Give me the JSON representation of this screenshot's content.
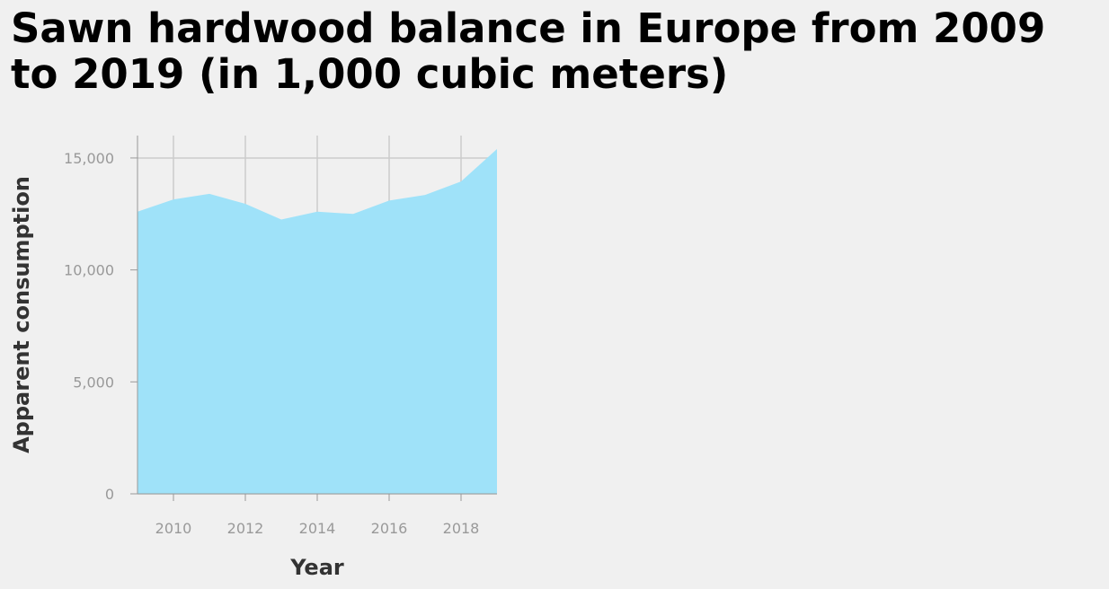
{
  "title": "Sawn hardwood balance in Europe from 2009 to 2019 (in 1,000 cubic meters)",
  "colors": {
    "background": "#f0f0f0",
    "area_fill": "#9fe2f9",
    "grid": "#cccccc",
    "axis": "#999999"
  },
  "chart_data": {
    "type": "area",
    "title": "Sawn hardwood balance in Europe from 2009 to 2019 (in 1,000 cubic meters)",
    "xlabel": "Year",
    "ylabel": "Apparent consumption",
    "x": [
      2009,
      2010,
      2011,
      2012,
      2013,
      2014,
      2015,
      2016,
      2017,
      2018,
      2019
    ],
    "series": [
      {
        "values": [
          12600,
          13150,
          13400,
          12950,
          12250,
          12600,
          12500,
          13100,
          13350,
          13950,
          15400
        ]
      }
    ],
    "xlim": [
      2009,
      2019
    ],
    "ylim": [
      0,
      16000
    ],
    "x_ticks": [
      2010,
      2012,
      2014,
      2016,
      2018
    ],
    "x_tick_labels": [
      "2010",
      "2012",
      "2014",
      "2016",
      "2018"
    ],
    "y_ticks": [
      0,
      5000,
      10000,
      15000
    ],
    "y_tick_labels": [
      "0",
      "5,000",
      "10,000",
      "15,000"
    ],
    "grid": true,
    "legend": false
  }
}
